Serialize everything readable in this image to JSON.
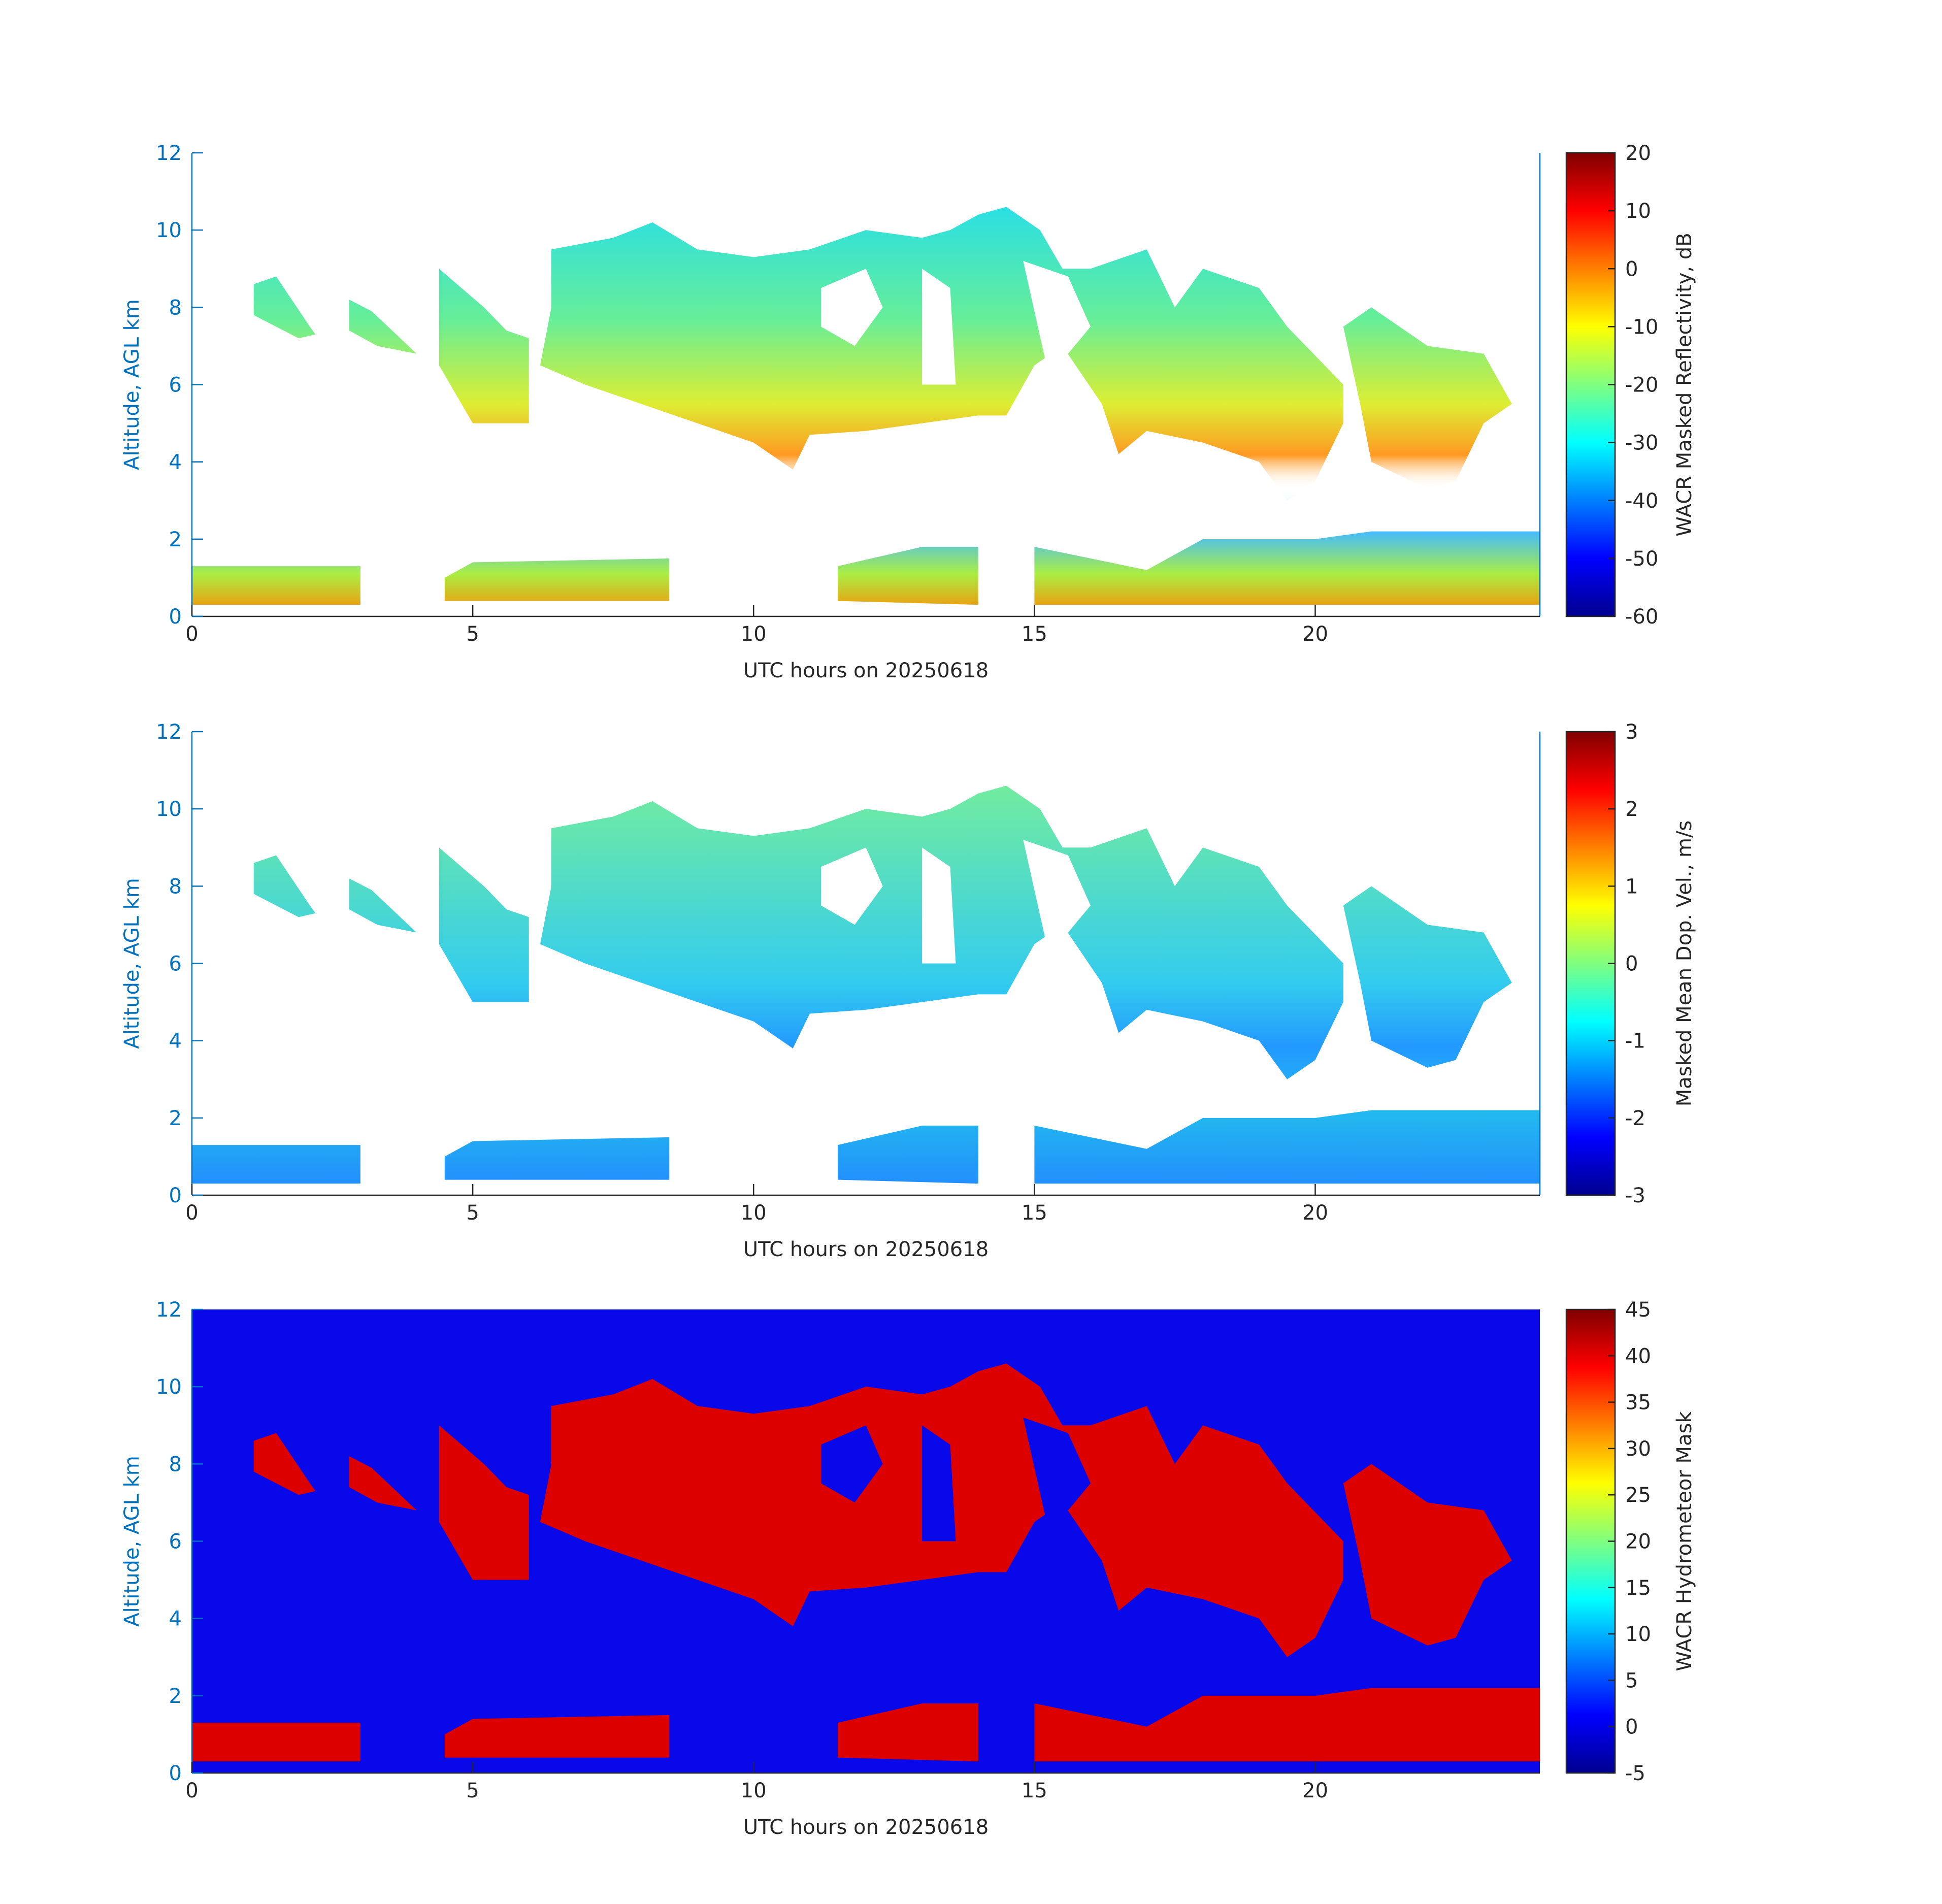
{
  "chart_data": [
    {
      "type": "heatmap",
      "xlabel": "UTC hours on 20250618",
      "ylabel": "Altitude, AGL km",
      "xlim": [
        0,
        24
      ],
      "ylim": [
        0,
        12
      ],
      "xticks": [
        0,
        5,
        10,
        15,
        20
      ],
      "yticks": [
        0,
        2,
        4,
        6,
        8,
        10,
        12
      ],
      "colorbar": {
        "label": "WACR Masked Reflectivity, dB",
        "lim": [
          -60,
          20
        ],
        "ticks": [
          -60,
          -50,
          -40,
          -30,
          -20,
          -10,
          0,
          10,
          20
        ]
      }
    },
    {
      "type": "heatmap",
      "xlabel": "UTC hours on 20250618",
      "ylabel": "Altitude, AGL km",
      "xlim": [
        0,
        24
      ],
      "ylim": [
        0,
        12
      ],
      "xticks": [
        0,
        5,
        10,
        15,
        20
      ],
      "yticks": [
        0,
        2,
        4,
        6,
        8,
        10,
        12
      ],
      "colorbar": {
        "label": "Masked Mean Dop. Vel., m/s",
        "lim": [
          -3,
          3
        ],
        "ticks": [
          -3,
          -2,
          -1,
          0,
          1,
          2,
          3
        ]
      }
    },
    {
      "type": "heatmap",
      "xlabel": "UTC hours on 20250618",
      "ylabel": "Altitude, AGL km",
      "xlim": [
        0,
        24
      ],
      "ylim": [
        0,
        12
      ],
      "xticks": [
        0,
        5,
        10,
        15,
        20
      ],
      "yticks": [
        0,
        2,
        4,
        6,
        8,
        10,
        12
      ],
      "colorbar": {
        "label": "WACR Hydrometeor Mask",
        "lim": [
          -5,
          45
        ],
        "ticks": [
          -5,
          0,
          5,
          10,
          15,
          20,
          25,
          30,
          35,
          40,
          45
        ]
      }
    }
  ]
}
